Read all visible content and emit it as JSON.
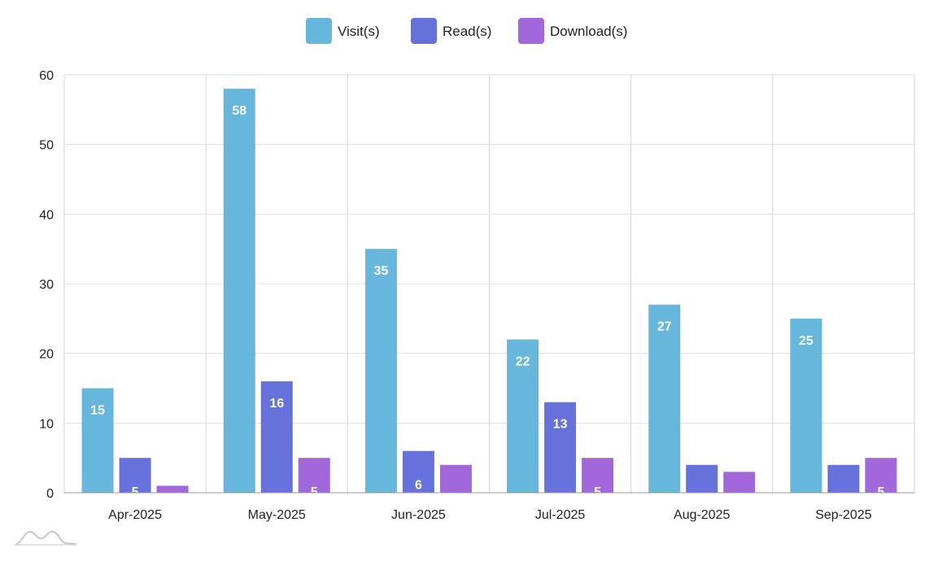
{
  "chart_data": {
    "type": "bar",
    "categories": [
      "Apr-2025",
      "May-2025",
      "Jun-2025",
      "Jul-2025",
      "Aug-2025",
      "Sep-2025"
    ],
    "series": [
      {
        "name": "Visit(s)",
        "color": "#67b7dc",
        "values": [
          15,
          58,
          35,
          22,
          27,
          25
        ]
      },
      {
        "name": "Read(s)",
        "color": "#6771dc",
        "values": [
          5,
          16,
          6,
          13,
          4,
          4
        ]
      },
      {
        "name": "Download(s)",
        "color": "#a367dc",
        "values": [
          1,
          5,
          4,
          5,
          3,
          5
        ]
      }
    ],
    "data_labels": [
      [
        "15",
        "58",
        "35",
        "22",
        "27",
        "25"
      ],
      [
        "5",
        "16",
        "6",
        "13",
        "",
        ""
      ],
      [
        "",
        "5",
        "",
        "5",
        "",
        "5"
      ]
    ],
    "ylim": [
      0,
      60
    ],
    "yticks": [
      "0",
      "10",
      "20",
      "30",
      "40",
      "50",
      "60"
    ],
    "grid": true,
    "legend_position": "top-center",
    "watermark_icon": "amcharts-logo-icon"
  }
}
